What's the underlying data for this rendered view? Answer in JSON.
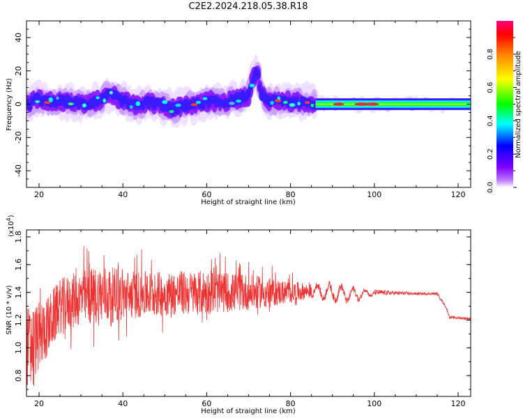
{
  "title": "C2E2.2024.218.05.38.R18",
  "chart_data": [
    {
      "type": "heatmap",
      "xlabel": "Height of straight line (km)",
      "ylabel": "Frequency (Hz)",
      "xlim": [
        17,
        123
      ],
      "ylim": [
        -50,
        50
      ],
      "xticks": [
        20,
        40,
        60,
        80,
        100,
        120
      ],
      "yticks": [
        40,
        20,
        0,
        -20,
        -40
      ],
      "colorbar": {
        "label": "Normalized spectral amplitude",
        "range": [
          0,
          1
        ],
        "ticks": [
          "0.0",
          "0.2",
          "0.4",
          "0.6",
          "0.8"
        ],
        "colors": [
          "#ffffff",
          "#8000ff",
          "#0000ff",
          "#00ffff",
          "#00ff00",
          "#ffff00",
          "#ff8000",
          "#ff0000",
          "#ff0080"
        ]
      },
      "ridge": [
        {
          "x": 18,
          "y": 2
        },
        {
          "x": 20,
          "y": 3
        },
        {
          "x": 22,
          "y": 1
        },
        {
          "x": 25,
          "y": 2
        },
        {
          "x": 28,
          "y": 1
        },
        {
          "x": 31,
          "y": 0
        },
        {
          "x": 34,
          "y": 2
        },
        {
          "x": 37,
          "y": 6
        },
        {
          "x": 40,
          "y": 2
        },
        {
          "x": 43,
          "y": -1
        },
        {
          "x": 46,
          "y": 1
        },
        {
          "x": 49,
          "y": 0
        },
        {
          "x": 52,
          "y": -3
        },
        {
          "x": 55,
          "y": -1
        },
        {
          "x": 58,
          "y": 0
        },
        {
          "x": 61,
          "y": 2
        },
        {
          "x": 64,
          "y": 1
        },
        {
          "x": 67,
          "y": 3
        },
        {
          "x": 70,
          "y": 5
        },
        {
          "x": 71,
          "y": 15
        },
        {
          "x": 72,
          "y": 20
        },
        {
          "x": 73,
          "y": 6
        },
        {
          "x": 75,
          "y": 2
        },
        {
          "x": 78,
          "y": 2
        },
        {
          "x": 81,
          "y": 1
        },
        {
          "x": 84,
          "y": 1
        },
        {
          "x": 88,
          "y": 0
        },
        {
          "x": 92,
          "y": 0
        },
        {
          "x": 96,
          "y": 0
        },
        {
          "x": 100,
          "y": 0
        },
        {
          "x": 110,
          "y": 0
        },
        {
          "x": 123,
          "y": 0
        }
      ]
    },
    {
      "type": "line",
      "xlabel": "Height of straight line (km)",
      "ylabel": "SNR (10 * v/v)",
      "yscale_label": "(x10",
      "yscale_exp": "4",
      "yscale_close": ")",
      "xlim": [
        17,
        123
      ],
      "ylim": [
        0.65,
        1.85
      ],
      "xticks": [
        20,
        40,
        60,
        80,
        100,
        120
      ],
      "yticks": [
        0.8,
        1.0,
        1.2,
        1.4,
        1.6,
        1.8
      ],
      "color": "#ee3333",
      "envelope": [
        {
          "x": 17,
          "mean": 1.0,
          "spread": 0.3
        },
        {
          "x": 20,
          "mean": 1.08,
          "spread": 0.25
        },
        {
          "x": 22,
          "mean": 1.15,
          "spread": 0.22
        },
        {
          "x": 25,
          "mean": 1.3,
          "spread": 0.2
        },
        {
          "x": 30,
          "mean": 1.36,
          "spread": 0.2
        },
        {
          "x": 35,
          "mean": 1.38,
          "spread": 0.22
        },
        {
          "x": 40,
          "mean": 1.38,
          "spread": 0.18
        },
        {
          "x": 50,
          "mean": 1.39,
          "spread": 0.16
        },
        {
          "x": 60,
          "mean": 1.4,
          "spread": 0.16
        },
        {
          "x": 70,
          "mean": 1.4,
          "spread": 0.13
        },
        {
          "x": 80,
          "mean": 1.4,
          "spread": 0.08
        },
        {
          "x": 85,
          "mean": 1.41,
          "spread": 0.05
        },
        {
          "x": 90,
          "mean": 1.4,
          "spread": 0.06
        },
        {
          "x": 95,
          "mean": 1.38,
          "spread": 0.05
        },
        {
          "x": 100,
          "mean": 1.4,
          "spread": 0.02
        },
        {
          "x": 110,
          "mean": 1.39,
          "spread": 0.01
        },
        {
          "x": 115,
          "mean": 1.39,
          "spread": 0.01
        },
        {
          "x": 117,
          "mean": 1.3,
          "spread": 0.01
        },
        {
          "x": 118,
          "mean": 1.22,
          "spread": 0.01
        },
        {
          "x": 123,
          "mean": 1.21,
          "spread": 0.01
        }
      ]
    }
  ]
}
